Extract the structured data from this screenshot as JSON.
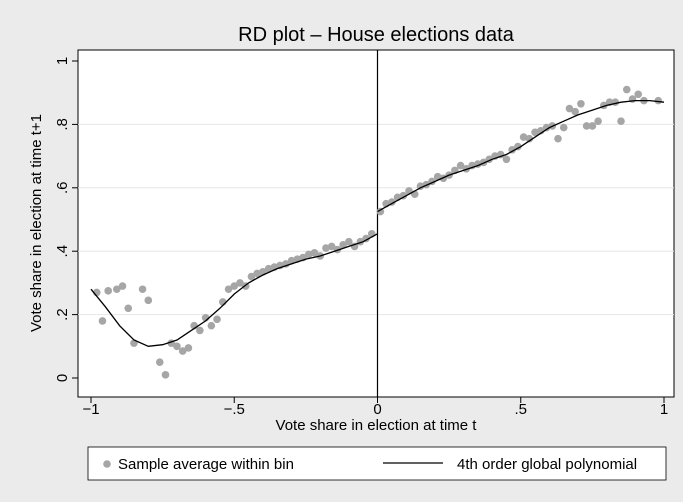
{
  "chart_data": {
    "type": "scatter",
    "title": "RD plot – House elections data",
    "xlabel": "Vote share in election at time t",
    "ylabel": "Vote share in election at time t+1",
    "xlim": [
      -1,
      1
    ],
    "ylim": [
      0,
      1
    ],
    "x_ticks": [
      -1,
      -0.5,
      0,
      0.5,
      1
    ],
    "x_tick_labels": [
      "−1",
      "−.5",
      "0",
      ".5",
      "1"
    ],
    "y_ticks": [
      0,
      0.2,
      0.4,
      0.6,
      0.8,
      1
    ],
    "y_tick_labels": [
      "0",
      ".2",
      ".4",
      ".6",
      ".8",
      "1"
    ],
    "cutoff": 0,
    "grid": true,
    "legend_position": "bottom",
    "colors": {
      "points": "#a6a6a6",
      "line": "#000000",
      "frame_bg": "#ebebeb",
      "plot_bg": "#ffffff"
    },
    "series": [
      {
        "name": "Sample average within bin",
        "kind": "scatter",
        "points": [
          [
            -0.98,
            0.27
          ],
          [
            -0.96,
            0.18
          ],
          [
            -0.94,
            0.275
          ],
          [
            -0.91,
            0.28
          ],
          [
            -0.89,
            0.29
          ],
          [
            -0.87,
            0.22
          ],
          [
            -0.85,
            0.11
          ],
          [
            -0.82,
            0.28
          ],
          [
            -0.8,
            0.245
          ],
          [
            -0.76,
            0.05
          ],
          [
            -0.74,
            0.01
          ],
          [
            -0.72,
            0.11
          ],
          [
            -0.7,
            0.1
          ],
          [
            -0.68,
            0.085
          ],
          [
            -0.66,
            0.095
          ],
          [
            -0.64,
            0.165
          ],
          [
            -0.62,
            0.15
          ],
          [
            -0.6,
            0.19
          ],
          [
            -0.58,
            0.165
          ],
          [
            -0.56,
            0.185
          ],
          [
            -0.54,
            0.24
          ],
          [
            -0.52,
            0.28
          ],
          [
            -0.5,
            0.29
          ],
          [
            -0.48,
            0.3
          ],
          [
            -0.46,
            0.29
          ],
          [
            -0.44,
            0.32
          ],
          [
            -0.42,
            0.33
          ],
          [
            -0.4,
            0.335
          ],
          [
            -0.38,
            0.345
          ],
          [
            -0.36,
            0.35
          ],
          [
            -0.34,
            0.355
          ],
          [
            -0.32,
            0.36
          ],
          [
            -0.3,
            0.37
          ],
          [
            -0.28,
            0.375
          ],
          [
            -0.26,
            0.38
          ],
          [
            -0.24,
            0.39
          ],
          [
            -0.22,
            0.395
          ],
          [
            -0.2,
            0.385
          ],
          [
            -0.18,
            0.41
          ],
          [
            -0.16,
            0.415
          ],
          [
            -0.14,
            0.405
          ],
          [
            -0.12,
            0.42
          ],
          [
            -0.1,
            0.43
          ],
          [
            -0.08,
            0.415
          ],
          [
            -0.06,
            0.43
          ],
          [
            -0.04,
            0.44
          ],
          [
            -0.02,
            0.455
          ],
          [
            0.01,
            0.525
          ],
          [
            0.03,
            0.55
          ],
          [
            0.05,
            0.555
          ],
          [
            0.07,
            0.57
          ],
          [
            0.09,
            0.575
          ],
          [
            0.11,
            0.59
          ],
          [
            0.13,
            0.58
          ],
          [
            0.15,
            0.605
          ],
          [
            0.17,
            0.61
          ],
          [
            0.19,
            0.62
          ],
          [
            0.21,
            0.635
          ],
          [
            0.23,
            0.63
          ],
          [
            0.25,
            0.64
          ],
          [
            0.27,
            0.655
          ],
          [
            0.29,
            0.67
          ],
          [
            0.31,
            0.66
          ],
          [
            0.33,
            0.67
          ],
          [
            0.35,
            0.675
          ],
          [
            0.37,
            0.68
          ],
          [
            0.39,
            0.69
          ],
          [
            0.41,
            0.7
          ],
          [
            0.43,
            0.705
          ],
          [
            0.45,
            0.69
          ],
          [
            0.47,
            0.72
          ],
          [
            0.49,
            0.73
          ],
          [
            0.51,
            0.76
          ],
          [
            0.53,
            0.755
          ],
          [
            0.55,
            0.775
          ],
          [
            0.57,
            0.78
          ],
          [
            0.59,
            0.79
          ],
          [
            0.61,
            0.795
          ],
          [
            0.63,
            0.755
          ],
          [
            0.65,
            0.79
          ],
          [
            0.67,
            0.85
          ],
          [
            0.69,
            0.84
          ],
          [
            0.71,
            0.865
          ],
          [
            0.73,
            0.795
          ],
          [
            0.75,
            0.795
          ],
          [
            0.77,
            0.81
          ],
          [
            0.79,
            0.86
          ],
          [
            0.81,
            0.87
          ],
          [
            0.83,
            0.87
          ],
          [
            0.85,
            0.81
          ],
          [
            0.87,
            0.91
          ],
          [
            0.89,
            0.88
          ],
          [
            0.91,
            0.895
          ],
          [
            0.93,
            0.875
          ],
          [
            0.98,
            0.875
          ]
        ]
      },
      {
        "name": "4th order global polynomial",
        "kind": "line",
        "segments": [
          [
            [
              -1,
              0.28
            ],
            [
              -0.95,
              0.225
            ],
            [
              -0.9,
              0.165
            ],
            [
              -0.85,
              0.12
            ],
            [
              -0.8,
              0.1
            ],
            [
              -0.75,
              0.105
            ],
            [
              -0.7,
              0.12
            ],
            [
              -0.65,
              0.15
            ],
            [
              -0.6,
              0.18
            ],
            [
              -0.55,
              0.22
            ],
            [
              -0.5,
              0.265
            ],
            [
              -0.45,
              0.3
            ],
            [
              -0.4,
              0.325
            ],
            [
              -0.35,
              0.345
            ],
            [
              -0.3,
              0.36
            ],
            [
              -0.25,
              0.375
            ],
            [
              -0.2,
              0.385
            ],
            [
              -0.15,
              0.4
            ],
            [
              -0.1,
              0.415
            ],
            [
              -0.05,
              0.43
            ],
            [
              0,
              0.455
            ]
          ],
          [
            [
              0,
              0.525
            ],
            [
              0.05,
              0.55
            ],
            [
              0.1,
              0.575
            ],
            [
              0.15,
              0.6
            ],
            [
              0.2,
              0.62
            ],
            [
              0.25,
              0.64
            ],
            [
              0.3,
              0.655
            ],
            [
              0.35,
              0.67
            ],
            [
              0.4,
              0.69
            ],
            [
              0.45,
              0.705
            ],
            [
              0.5,
              0.73
            ],
            [
              0.55,
              0.76
            ],
            [
              0.6,
              0.79
            ],
            [
              0.65,
              0.81
            ],
            [
              0.7,
              0.83
            ],
            [
              0.75,
              0.845
            ],
            [
              0.8,
              0.86
            ],
            [
              0.85,
              0.87
            ],
            [
              0.9,
              0.875
            ],
            [
              0.95,
              0.875
            ],
            [
              1,
              0.87
            ]
          ]
        ]
      }
    ]
  }
}
